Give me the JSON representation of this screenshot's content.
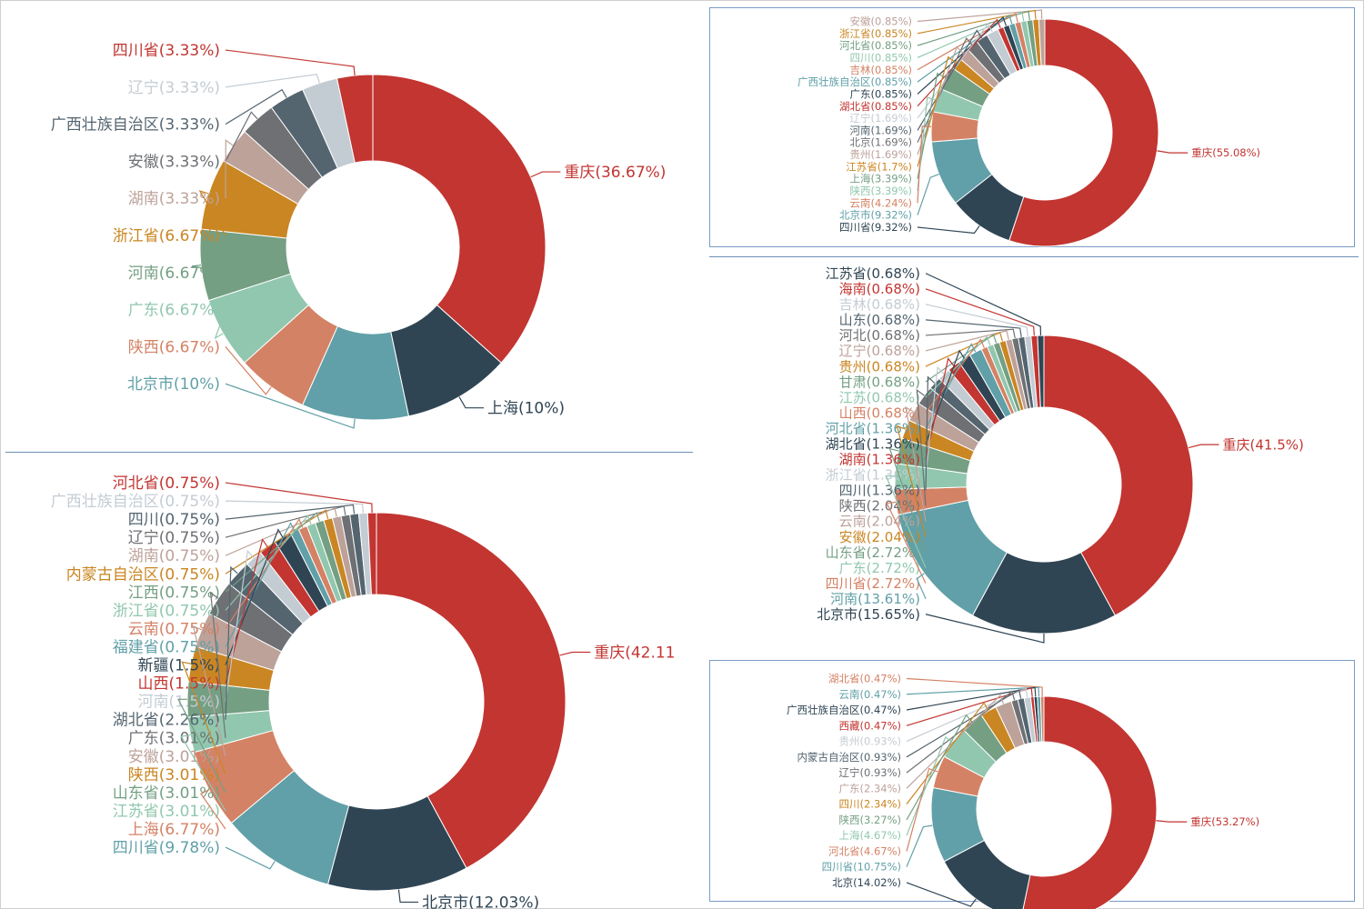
{
  "palette": [
    "#c23531",
    "#2f4554",
    "#61a0a8",
    "#d48265",
    "#91c7ae",
    "#749f83",
    "#ca8622",
    "#bda29a",
    "#6e7074",
    "#546570",
    "#c4ccd3"
  ],
  "chart_data": [
    {
      "type": "pie",
      "donut": true,
      "slices": [
        {
          "name": "重庆",
          "value": 36.67,
          "label": "重庆(36.67%)"
        },
        {
          "name": "上海",
          "value": 10,
          "label": "上海(10%)"
        },
        {
          "name": "北京市",
          "value": 10,
          "label": "北京市(10%)"
        },
        {
          "name": "陕西",
          "value": 6.67,
          "label": "陕西(6.67%)"
        },
        {
          "name": "广东",
          "value": 6.67,
          "label": "广东(6.67%)"
        },
        {
          "name": "河南",
          "value": 6.67,
          "label": "河南(6.67%)"
        },
        {
          "name": "浙江省",
          "value": 6.67,
          "label": "浙江省(6.67%)"
        },
        {
          "name": "湖南",
          "value": 3.33,
          "label": "湖南(3.33%)"
        },
        {
          "name": "安徽",
          "value": 3.33,
          "label": "安徽(3.33%)"
        },
        {
          "name": "广西壮族自治区",
          "value": 3.33,
          "label": "广西壮族自治区(3.33%)"
        },
        {
          "name": "辽宁",
          "value": 3.33,
          "label": "辽宁(3.33%)"
        },
        {
          "name": "四川省",
          "value": 3.33,
          "label": "四川省(3.33%)"
        }
      ]
    },
    {
      "type": "pie",
      "donut": true,
      "slices": [
        {
          "name": "重庆",
          "value": 42.11,
          "label": "重庆(42.11"
        },
        {
          "name": "北京市",
          "value": 12.03,
          "label": "北京市(12.03%)"
        },
        {
          "name": "四川省",
          "value": 9.78,
          "label": "四川省(9.78%)"
        },
        {
          "name": "上海",
          "value": 6.77,
          "label": "上海(6.77%)"
        },
        {
          "name": "江苏省",
          "value": 3.01,
          "label": "江苏省(3.01%)"
        },
        {
          "name": "山东省",
          "value": 3.01,
          "label": "山东省(3.01%)"
        },
        {
          "name": "陕西",
          "value": 3.01,
          "label": "陕西(3.01%)"
        },
        {
          "name": "安徽",
          "value": 3.01,
          "label": "安徽(3.01%)"
        },
        {
          "name": "广东",
          "value": 3.01,
          "label": "广东(3.01%)"
        },
        {
          "name": "湖北省",
          "value": 2.26,
          "label": "湖北省(2.26%)"
        },
        {
          "name": "河南",
          "value": 1.5,
          "label": "河南(1.5%)"
        },
        {
          "name": "山西",
          "value": 1.5,
          "label": "山西(1.5%)"
        },
        {
          "name": "新疆",
          "value": 1.5,
          "label": "新疆(1.5%)"
        },
        {
          "name": "福建省",
          "value": 0.75,
          "label": "福建省(0.75%)"
        },
        {
          "name": "云南",
          "value": 0.75,
          "label": "云南(0.75%)"
        },
        {
          "name": "浙江省",
          "value": 0.75,
          "label": "浙江省(0.75%)"
        },
        {
          "name": "江西",
          "value": 0.75,
          "label": "江西(0.75%)"
        },
        {
          "name": "内蒙古自治区",
          "value": 0.75,
          "label": "内蒙古自治区(0.75%)"
        },
        {
          "name": "湖南",
          "value": 0.75,
          "label": "湖南(0.75%)"
        },
        {
          "name": "辽宁",
          "value": 0.75,
          "label": "辽宁(0.75%)"
        },
        {
          "name": "四川",
          "value": 0.75,
          "label": "四川(0.75%)"
        },
        {
          "name": "广西壮族自治区",
          "value": 0.75,
          "label": "广西壮族自治区(0.75%)"
        },
        {
          "name": "河北省",
          "value": 0.75,
          "label": "河北省(0.75%)"
        }
      ]
    },
    {
      "type": "pie",
      "donut": true,
      "slices": [
        {
          "name": "重庆",
          "value": 55.08,
          "label": "重庆(55.08%)"
        },
        {
          "name": "四川省",
          "value": 9.32,
          "label": "四川省(9.32%)"
        },
        {
          "name": "北京市",
          "value": 9.32,
          "label": "北京市(9.32%)"
        },
        {
          "name": "云南",
          "value": 4.24,
          "label": "云南(4.24%)"
        },
        {
          "name": "陕西",
          "value": 3.39,
          "label": "陕西(3.39%)"
        },
        {
          "name": "上海",
          "value": 3.39,
          "label": "上海(3.39%)"
        },
        {
          "name": "江苏省",
          "value": 1.7,
          "label": "江苏省(1.7%)"
        },
        {
          "name": "贵州",
          "value": 1.69,
          "label": "贵州(1.69%)"
        },
        {
          "name": "北京",
          "value": 1.69,
          "label": "北京(1.69%)"
        },
        {
          "name": "河南",
          "value": 1.69,
          "label": "河南(1.69%)"
        },
        {
          "name": "辽宁",
          "value": 1.69,
          "label": "辽宁(1.69%)"
        },
        {
          "name": "湖北省",
          "value": 0.85,
          "label": "湖北省(0.85%)"
        },
        {
          "name": "广东",
          "value": 0.85,
          "label": "广东(0.85%)"
        },
        {
          "name": "广西壮族自治区",
          "value": 0.85,
          "label": "广西壮族自治区(0.85%)"
        },
        {
          "name": "吉林",
          "value": 0.85,
          "label": "吉林(0.85%)"
        },
        {
          "name": "四川",
          "value": 0.85,
          "label": "四川(0.85%)"
        },
        {
          "name": "河北省",
          "value": 0.85,
          "label": "河北省(0.85%)"
        },
        {
          "name": "浙江省",
          "value": 0.85,
          "label": "浙江省(0.85%)"
        },
        {
          "name": "安徽",
          "value": 0.85,
          "label": "安徽(0.85%)"
        }
      ]
    },
    {
      "type": "pie",
      "donut": true,
      "slices": [
        {
          "name": "重庆",
          "value": 41.5,
          "label": "重庆(41.5%)"
        },
        {
          "name": "北京市",
          "value": 15.65,
          "label": "北京市(15.65%)"
        },
        {
          "name": "河南",
          "value": 13.61,
          "label": "河南(13.61%)"
        },
        {
          "name": "四川省",
          "value": 2.72,
          "label": "四川省(2.72%)"
        },
        {
          "name": "广东",
          "value": 2.72,
          "label": "广东(2.72%)"
        },
        {
          "name": "山东省",
          "value": 2.72,
          "label": "山东省(2.72%)"
        },
        {
          "name": "安徽",
          "value": 2.04,
          "label": "安徽(2.04%)"
        },
        {
          "name": "云南",
          "value": 2.04,
          "label": "云南(2.04%)"
        },
        {
          "name": "陕西",
          "value": 2.04,
          "label": "陕西(2.04%)"
        },
        {
          "name": "四川",
          "value": 1.36,
          "label": "四川(1.36%)"
        },
        {
          "name": "浙江省",
          "value": 1.36,
          "label": "浙江省(1.36%)"
        },
        {
          "name": "湖南",
          "value": 1.36,
          "label": "湖南(1.36%)"
        },
        {
          "name": "湖北省",
          "value": 1.36,
          "label": "湖北省(1.36%)"
        },
        {
          "name": "河北省",
          "value": 1.36,
          "label": "河北省(1.36%)"
        },
        {
          "name": "山西",
          "value": 0.68,
          "label": "山西(0.68%)"
        },
        {
          "name": "江苏",
          "value": 0.68,
          "label": "江苏(0.68%)"
        },
        {
          "name": "甘肃",
          "value": 0.68,
          "label": "甘肃(0.68%)"
        },
        {
          "name": "贵州",
          "value": 0.68,
          "label": "贵州(0.68%)"
        },
        {
          "name": "辽宁",
          "value": 0.68,
          "label": "辽宁(0.68%)"
        },
        {
          "name": "河北",
          "value": 0.68,
          "label": "河北(0.68%)"
        },
        {
          "name": "山东",
          "value": 0.68,
          "label": "山东(0.68%)"
        },
        {
          "name": "吉林",
          "value": 0.68,
          "label": "吉林(0.68%)"
        },
        {
          "name": "海南",
          "value": 0.68,
          "label": "海南(0.68%)"
        },
        {
          "name": "江苏省",
          "value": 0.68,
          "label": "江苏省(0.68%)"
        }
      ]
    },
    {
      "type": "pie",
      "donut": true,
      "slices": [
        {
          "name": "重庆",
          "value": 53.27,
          "label": "重庆(53.27%)"
        },
        {
          "name": "北京",
          "value": 14.02,
          "label": "北京(14.02%)"
        },
        {
          "name": "四川省",
          "value": 10.75,
          "label": "四川省(10.75%)"
        },
        {
          "name": "河北省",
          "value": 4.67,
          "label": "河北省(4.67%)"
        },
        {
          "name": "上海",
          "value": 4.67,
          "label": "上海(4.67%)"
        },
        {
          "name": "陕西",
          "value": 3.27,
          "label": "陕西(3.27%)"
        },
        {
          "name": "四川",
          "value": 2.34,
          "label": "四川(2.34%)"
        },
        {
          "name": "广东",
          "value": 2.34,
          "label": "广东(2.34%)"
        },
        {
          "name": "辽宁",
          "value": 0.93,
          "label": "辽宁(0.93%)"
        },
        {
          "name": "内蒙古自治区",
          "value": 0.93,
          "label": "内蒙古自治区(0.93%)"
        },
        {
          "name": "贵州",
          "value": 0.93,
          "label": "贵州(0.93%)"
        },
        {
          "name": "西藏",
          "value": 0.47,
          "label": "西藏(0.47%)"
        },
        {
          "name": "广西壮族自治区",
          "value": 0.47,
          "label": "广西壮族自治区(0.47%)"
        },
        {
          "name": "云南",
          "value": 0.47,
          "label": "云南(0.47%)"
        },
        {
          "name": "湖北省",
          "value": 0.47,
          "label": "湖北省(0.47%)"
        }
      ]
    }
  ]
}
